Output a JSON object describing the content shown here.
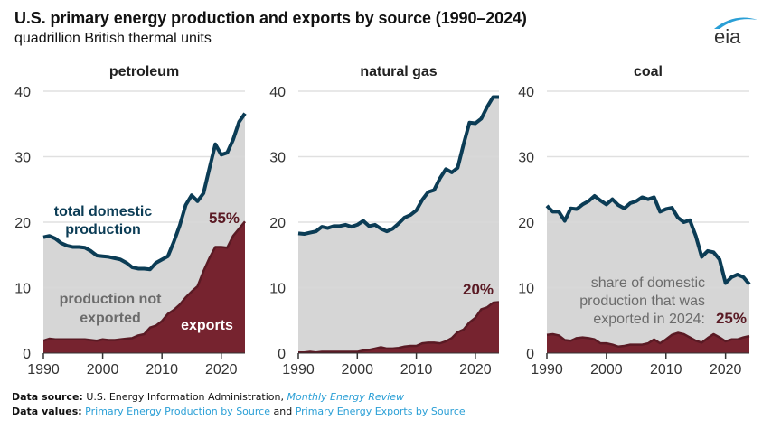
{
  "header": {
    "title": "U.S. primary energy production and exports by source (1990–2024)",
    "subtitle": "quadrillion British thermal units",
    "logo_text": "eia"
  },
  "colors": {
    "production_line": "#0b3c55",
    "production_fill": "#d6d6d6",
    "exports_fill": "#76232f",
    "exports_edge": "#5a1a24",
    "grid": "#d9d9d9",
    "axis_text": "#333333",
    "annotation_gray": "#6b6b6b",
    "pct_label": "#5a1a24",
    "link": "#2a9fd6"
  },
  "chart_data": [
    {
      "type": "area",
      "title": "petroleum",
      "xlabel": "",
      "ylabel": "quadrillion British thermal units",
      "xlim": [
        1990,
        2024
      ],
      "ylim": [
        0,
        40
      ],
      "yticks": [
        0,
        10,
        20,
        30,
        40
      ],
      "xticks": [
        1990,
        2000,
        2010,
        2020
      ],
      "grid": true,
      "x": [
        1990,
        1991,
        1992,
        1993,
        1994,
        1995,
        1996,
        1997,
        1998,
        1999,
        2000,
        2001,
        2002,
        2003,
        2004,
        2005,
        2006,
        2007,
        2008,
        2009,
        2010,
        2011,
        2012,
        2013,
        2014,
        2015,
        2016,
        2017,
        2018,
        2019,
        2020,
        2021,
        2022,
        2023,
        2024
      ],
      "series": [
        {
          "name": "total domestic production",
          "values": [
            17.7,
            17.9,
            17.5,
            16.8,
            16.4,
            16.2,
            16.2,
            16.1,
            15.6,
            14.9,
            14.8,
            14.7,
            14.5,
            14.3,
            13.8,
            13.1,
            12.9,
            12.9,
            12.8,
            13.8,
            14.3,
            14.8,
            17.0,
            19.5,
            22.6,
            24.1,
            23.2,
            24.4,
            28.2,
            31.9,
            30.3,
            30.6,
            32.6,
            35.3,
            36.6
          ]
        },
        {
          "name": "exports",
          "values": [
            1.9,
            2.2,
            2.1,
            2.1,
            2.1,
            2.1,
            2.1,
            2.1,
            2.0,
            1.9,
            2.1,
            2.0,
            2.0,
            2.1,
            2.2,
            2.3,
            2.7,
            2.9,
            3.9,
            4.2,
            4.9,
            6.0,
            6.6,
            7.4,
            8.5,
            9.4,
            10.2,
            12.5,
            14.5,
            16.2,
            16.2,
            16.1,
            17.9,
            19.0,
            20.1
          ]
        }
      ],
      "annotations": [
        {
          "text_lines": [
            "total domestic",
            "production"
          ],
          "series": "total domestic production"
        },
        {
          "text_lines": [
            "production not",
            "exported"
          ]
        },
        {
          "text_lines": [
            "exports"
          ]
        },
        {
          "text_lines": [
            "55%"
          ],
          "meaning": "share of 2024 production exported"
        }
      ]
    },
    {
      "type": "area",
      "title": "natural gas",
      "xlabel": "",
      "ylabel": "quadrillion British thermal units",
      "xlim": [
        1990,
        2024
      ],
      "ylim": [
        0,
        40
      ],
      "yticks": [
        0,
        10,
        20,
        30,
        40
      ],
      "xticks": [
        1990,
        2000,
        2010,
        2020
      ],
      "grid": true,
      "x": [
        1990,
        1991,
        1992,
        1993,
        1994,
        1995,
        1996,
        1997,
        1998,
        1999,
        2000,
        2001,
        2002,
        2003,
        2004,
        2005,
        2006,
        2007,
        2008,
        2009,
        2010,
        2011,
        2012,
        2013,
        2014,
        2015,
        2016,
        2017,
        2018,
        2019,
        2020,
        2021,
        2022,
        2023,
        2024
      ],
      "series": [
        {
          "name": "total domestic production",
          "values": [
            18.3,
            18.2,
            18.4,
            18.6,
            19.3,
            19.1,
            19.4,
            19.4,
            19.6,
            19.3,
            19.6,
            20.2,
            19.4,
            19.6,
            19.0,
            18.6,
            19.0,
            19.8,
            20.7,
            21.1,
            21.8,
            23.4,
            24.6,
            24.9,
            26.7,
            28.1,
            27.6,
            28.3,
            31.9,
            35.2,
            35.1,
            35.8,
            37.6,
            39.1,
            39.1
          ]
        },
        {
          "name": "exports",
          "values": [
            0.1,
            0.1,
            0.2,
            0.1,
            0.2,
            0.2,
            0.2,
            0.2,
            0.2,
            0.2,
            0.2,
            0.4,
            0.5,
            0.7,
            0.9,
            0.7,
            0.7,
            0.8,
            1.0,
            1.1,
            1.1,
            1.5,
            1.6,
            1.6,
            1.5,
            1.8,
            2.3,
            3.2,
            3.6,
            4.7,
            5.4,
            6.7,
            7.0,
            7.7,
            7.8
          ]
        }
      ],
      "annotations": [
        {
          "text_lines": [
            "20%"
          ],
          "meaning": "share of 2024 production exported"
        }
      ]
    },
    {
      "type": "area",
      "title": "coal",
      "xlabel": "",
      "ylabel": "quadrillion British thermal units",
      "xlim": [
        1990,
        2024
      ],
      "ylim": [
        0,
        40
      ],
      "yticks": [
        0,
        10,
        20,
        30,
        40
      ],
      "xticks": [
        1990,
        2000,
        2010,
        2020
      ],
      "grid": true,
      "x": [
        1990,
        1991,
        1992,
        1993,
        1994,
        1995,
        1996,
        1997,
        1998,
        1999,
        2000,
        2001,
        2002,
        2003,
        2004,
        2005,
        2006,
        2007,
        2008,
        2009,
        2010,
        2011,
        2012,
        2013,
        2014,
        2015,
        2016,
        2017,
        2018,
        2019,
        2020,
        2021,
        2022,
        2023,
        2024
      ],
      "series": [
        {
          "name": "total domestic production",
          "values": [
            22.5,
            21.6,
            21.6,
            20.2,
            22.1,
            22.0,
            22.7,
            23.2,
            24.0,
            23.3,
            22.7,
            23.5,
            22.6,
            22.1,
            22.9,
            23.2,
            23.8,
            23.5,
            23.8,
            21.6,
            22.0,
            22.2,
            20.7,
            20.0,
            20.3,
            17.9,
            14.7,
            15.6,
            15.4,
            14.3,
            10.7,
            11.6,
            12.0,
            11.6,
            10.5
          ]
        },
        {
          "name": "exports",
          "values": [
            2.8,
            2.9,
            2.7,
            2.0,
            1.9,
            2.3,
            2.4,
            2.3,
            2.1,
            1.5,
            1.5,
            1.3,
            1.0,
            1.1,
            1.3,
            1.3,
            1.3,
            1.5,
            2.1,
            1.5,
            2.1,
            2.8,
            3.1,
            2.9,
            2.4,
            1.9,
            1.6,
            2.3,
            2.9,
            2.4,
            1.8,
            2.1,
            2.1,
            2.4,
            2.6
          ]
        }
      ],
      "annotations": [
        {
          "text_lines": [
            "share of domestic",
            "production that was",
            "exported in 2024:"
          ]
        },
        {
          "text_lines": [
            "25%"
          ],
          "meaning": "share of 2024 production exported"
        }
      ]
    }
  ],
  "footer": {
    "source_label": "Data source:",
    "source_text": "U.S. Energy Information Administration,",
    "source_link": "Monthly Energy Review",
    "values_label": "Data values:",
    "values_link_1": "Primary Energy Production by Source",
    "values_and": "and",
    "values_link_2": "Primary Energy Exports by Source"
  }
}
